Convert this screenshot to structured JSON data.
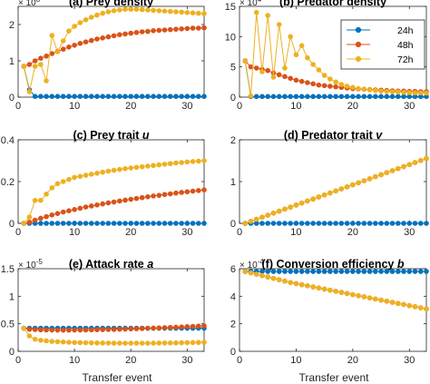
{
  "figure": {
    "xlabel": "Transfer event",
    "colors": {
      "24h": "#0072BD",
      "48h": "#D95319",
      "72h": "#EDB120"
    },
    "legend": {
      "placement": "inside-top-right of panel (b)",
      "entries": [
        "24h",
        "48h",
        "72h"
      ]
    },
    "line_style": "line with filled circle markers",
    "grid": false
  },
  "chart_data": [
    {
      "panel": "a",
      "type": "line",
      "title": "(a) Prey density",
      "title_parts": [
        {
          "text": "(a) Prey density",
          "italic": false
        }
      ],
      "exponent_label": "× 10^8",
      "exponent_base": "× 10",
      "exponent_power": "8",
      "xlim": [
        0,
        33
      ],
      "ylim": [
        0,
        2.5
      ],
      "xticks": [
        0,
        10,
        20,
        30
      ],
      "yticks": [
        0,
        1,
        2
      ],
      "xtick_labels": [
        "0",
        "10",
        "20",
        "30"
      ],
      "ytick_labels": [
        "0",
        "1",
        "2"
      ],
      "x": [
        1,
        2,
        3,
        4,
        5,
        6,
        7,
        8,
        9,
        10,
        11,
        12,
        13,
        14,
        15,
        16,
        17,
        18,
        19,
        20,
        21,
        22,
        23,
        24,
        25,
        26,
        27,
        28,
        29,
        30,
        31,
        32,
        33
      ],
      "series": [
        {
          "name": "24h",
          "values": [
            0.85,
            0.2,
            0.02,
            0.02,
            0.02,
            0.02,
            0.02,
            0.02,
            0.02,
            0.02,
            0.02,
            0.02,
            0.02,
            0.02,
            0.02,
            0.02,
            0.02,
            0.02,
            0.02,
            0.02,
            0.02,
            0.02,
            0.02,
            0.02,
            0.02,
            0.02,
            0.02,
            0.02,
            0.02,
            0.02,
            0.02,
            0.02,
            0.02
          ]
        },
        {
          "name": "48h",
          "values": [
            0.85,
            0.9,
            1.0,
            1.07,
            1.13,
            1.2,
            1.26,
            1.32,
            1.38,
            1.43,
            1.48,
            1.52,
            1.56,
            1.6,
            1.63,
            1.66,
            1.69,
            1.72,
            1.74,
            1.76,
            1.78,
            1.8,
            1.81,
            1.83,
            1.84,
            1.85,
            1.86,
            1.87,
            1.88,
            1.89,
            1.9,
            1.9,
            1.91
          ]
        },
        {
          "name": "72h",
          "values": [
            0.85,
            0.15,
            0.85,
            0.9,
            0.45,
            1.7,
            1.25,
            1.55,
            1.82,
            1.95,
            2.05,
            2.13,
            2.2,
            2.26,
            2.31,
            2.35,
            2.38,
            2.4,
            2.42,
            2.42,
            2.42,
            2.41,
            2.4,
            2.39,
            2.38,
            2.37,
            2.36,
            2.35,
            2.34,
            2.33,
            2.32,
            2.31,
            2.3
          ]
        }
      ]
    },
    {
      "panel": "b",
      "type": "line",
      "title": "(b) Predator density",
      "title_parts": [
        {
          "text": "(b) Predator density",
          "italic": false
        }
      ],
      "exponent_label": "× 10^4",
      "exponent_base": "× 10",
      "exponent_power": "4",
      "xlim": [
        0,
        33
      ],
      "ylim": [
        0,
        15
      ],
      "xticks": [
        0,
        10,
        20,
        30
      ],
      "yticks": [
        0,
        5,
        10,
        15
      ],
      "xtick_labels": [
        "0",
        "10",
        "20",
        "30"
      ],
      "ytick_labels": [
        "0",
        "5",
        "10",
        "15"
      ],
      "x": [
        1,
        2,
        3,
        4,
        5,
        6,
        7,
        8,
        9,
        10,
        11,
        12,
        13,
        14,
        15,
        16,
        17,
        18,
        19,
        20,
        21,
        22,
        23,
        24,
        25,
        26,
        27,
        28,
        29,
        30,
        31,
        32,
        33
      ],
      "series": [
        {
          "name": "24h",
          "values": [
            6,
            0.1,
            0.1,
            0.1,
            0.1,
            0.1,
            0.1,
            0.1,
            0.1,
            0.1,
            0.1,
            0.1,
            0.1,
            0.1,
            0.1,
            0.1,
            0.1,
            0.1,
            0.1,
            0.1,
            0.1,
            0.1,
            0.1,
            0.1,
            0.1,
            0.1,
            0.1,
            0.1,
            0.1,
            0.1,
            0.1,
            0.1,
            0.1
          ]
        },
        {
          "name": "48h",
          "values": [
            6,
            5,
            4.8,
            4.6,
            4.4,
            4.0,
            3.7,
            3.4,
            3.1,
            2.8,
            2.6,
            2.4,
            2.2,
            2.0,
            1.9,
            1.8,
            1.7,
            1.6,
            1.5,
            1.4,
            1.35,
            1.3,
            1.25,
            1.2,
            1.15,
            1.1,
            1.05,
            1.0,
            1.0,
            0.95,
            0.95,
            0.9,
            0.9
          ]
        },
        {
          "name": "72h",
          "values": [
            6,
            0.2,
            14,
            4.2,
            13.5,
            3.3,
            12,
            4.8,
            10,
            7,
            8.5,
            6.5,
            5.4,
            4.5,
            3.6,
            3.0,
            2.5,
            2.1,
            1.8,
            1.6,
            1.4,
            1.3,
            1.2,
            1.1,
            1.0,
            0.95,
            0.9,
            0.85,
            0.8,
            0.75,
            0.72,
            0.7,
            0.68
          ]
        }
      ]
    },
    {
      "panel": "c",
      "type": "line",
      "title": "(c) Prey trait u",
      "title_parts": [
        {
          "text": "(c)  Prey trait ",
          "italic": false
        },
        {
          "text": "u",
          "italic": true
        }
      ],
      "exponent_label": "",
      "exponent_base": "",
      "exponent_power": "",
      "xlim": [
        0,
        33
      ],
      "ylim": [
        0,
        0.4
      ],
      "xticks": [
        0,
        10,
        20,
        30
      ],
      "yticks": [
        0,
        0.2,
        0.4
      ],
      "xtick_labels": [
        "0",
        "10",
        "20",
        "30"
      ],
      "ytick_labels": [
        "0",
        "0.2",
        "0.4"
      ],
      "x": [
        1,
        2,
        3,
        4,
        5,
        6,
        7,
        8,
        9,
        10,
        11,
        12,
        13,
        14,
        15,
        16,
        17,
        18,
        19,
        20,
        21,
        22,
        23,
        24,
        25,
        26,
        27,
        28,
        29,
        30,
        31,
        32,
        33
      ],
      "series": [
        {
          "name": "24h",
          "values": [
            0,
            0,
            0,
            0,
            0,
            0,
            0,
            0,
            0,
            0,
            0,
            0,
            0,
            0,
            0,
            0,
            0,
            0,
            0,
            0,
            0,
            0,
            0,
            0,
            0,
            0,
            0,
            0,
            0,
            0,
            0,
            0,
            0
          ]
        },
        {
          "name": "48h",
          "values": [
            0,
            0.005,
            0.015,
            0.024,
            0.032,
            0.04,
            0.047,
            0.054,
            0.06,
            0.066,
            0.072,
            0.078,
            0.083,
            0.088,
            0.093,
            0.098,
            0.102,
            0.107,
            0.111,
            0.115,
            0.119,
            0.123,
            0.127,
            0.131,
            0.134,
            0.138,
            0.141,
            0.145,
            0.148,
            0.151,
            0.154,
            0.157,
            0.16
          ]
        },
        {
          "name": "72h",
          "values": [
            0,
            0.03,
            0.11,
            0.11,
            0.14,
            0.17,
            0.19,
            0.2,
            0.21,
            0.22,
            0.225,
            0.23,
            0.235,
            0.24,
            0.245,
            0.25,
            0.254,
            0.258,
            0.262,
            0.265,
            0.268,
            0.271,
            0.274,
            0.277,
            0.28,
            0.283,
            0.286,
            0.289,
            0.291,
            0.294,
            0.296,
            0.298,
            0.3
          ]
        }
      ]
    },
    {
      "panel": "d",
      "type": "line",
      "title": "(d) Predator trait v",
      "title_parts": [
        {
          "text": "(d)  Predator trait ",
          "italic": false
        },
        {
          "text": "v",
          "italic": true
        }
      ],
      "exponent_label": "",
      "exponent_base": "",
      "exponent_power": "",
      "xlim": [
        0,
        33
      ],
      "ylim": [
        0,
        2
      ],
      "xticks": [
        0,
        10,
        20,
        30
      ],
      "yticks": [
        0,
        1,
        2
      ],
      "xtick_labels": [
        "0",
        "10",
        "20",
        "30"
      ],
      "ytick_labels": [
        "0",
        "1",
        "2"
      ],
      "x": [
        1,
        2,
        3,
        4,
        5,
        6,
        7,
        8,
        9,
        10,
        11,
        12,
        13,
        14,
        15,
        16,
        17,
        18,
        19,
        20,
        21,
        22,
        23,
        24,
        25,
        26,
        27,
        28,
        29,
        30,
        31,
        32,
        33
      ],
      "series": [
        {
          "name": "24h",
          "values": [
            0,
            0,
            0,
            0,
            0,
            0,
            0,
            0,
            0,
            0,
            0,
            0,
            0,
            0,
            0,
            0,
            0,
            0,
            0,
            0,
            0,
            0,
            0,
            0,
            0,
            0,
            0,
            0,
            0,
            0,
            0,
            0,
            0
          ]
        },
        {
          "name": "48h",
          "values": [
            0,
            0.049,
            0.097,
            0.146,
            0.194,
            0.243,
            0.291,
            0.34,
            0.388,
            0.437,
            0.485,
            0.534,
            0.582,
            0.631,
            0.679,
            0.728,
            0.776,
            0.825,
            0.873,
            0.922,
            0.97,
            1.019,
            1.067,
            1.116,
            1.164,
            1.213,
            1.261,
            1.31,
            1.358,
            1.407,
            1.455,
            1.504,
            1.552
          ]
        },
        {
          "name": "72h",
          "values": [
            0,
            0.049,
            0.097,
            0.146,
            0.194,
            0.243,
            0.291,
            0.34,
            0.388,
            0.437,
            0.485,
            0.534,
            0.582,
            0.631,
            0.679,
            0.728,
            0.776,
            0.825,
            0.873,
            0.922,
            0.97,
            1.019,
            1.067,
            1.116,
            1.164,
            1.213,
            1.261,
            1.31,
            1.358,
            1.407,
            1.455,
            1.504,
            1.552
          ]
        }
      ]
    },
    {
      "panel": "e",
      "type": "line",
      "title": "(e) Attack rate a",
      "title_parts": [
        {
          "text": "(e)  Attack rate ",
          "italic": false
        },
        {
          "text": "a",
          "italic": true
        }
      ],
      "exponent_label": "× 10^-5",
      "exponent_base": "× 10",
      "exponent_power": "-5",
      "xlim": [
        0,
        33
      ],
      "ylim": [
        0,
        1.5
      ],
      "xticks": [
        0,
        10,
        20,
        30
      ],
      "yticks": [
        0,
        0.5,
        1,
        1.5
      ],
      "xtick_labels": [
        "0",
        "10",
        "20",
        "30"
      ],
      "ytick_labels": [
        "0",
        "0.5",
        "1",
        "1.5"
      ],
      "x": [
        1,
        2,
        3,
        4,
        5,
        6,
        7,
        8,
        9,
        10,
        11,
        12,
        13,
        14,
        15,
        16,
        17,
        18,
        19,
        20,
        21,
        22,
        23,
        24,
        25,
        26,
        27,
        28,
        29,
        30,
        31,
        32,
        33
      ],
      "series": [
        {
          "name": "24h",
          "values": [
            0.42,
            0.42,
            0.42,
            0.42,
            0.42,
            0.42,
            0.42,
            0.42,
            0.42,
            0.42,
            0.42,
            0.42,
            0.42,
            0.42,
            0.42,
            0.42,
            0.42,
            0.42,
            0.42,
            0.42,
            0.42,
            0.42,
            0.42,
            0.42,
            0.42,
            0.42,
            0.42,
            0.42,
            0.42,
            0.42,
            0.42,
            0.42,
            0.42
          ]
        },
        {
          "name": "48h",
          "values": [
            0.42,
            0.4,
            0.395,
            0.39,
            0.388,
            0.386,
            0.385,
            0.385,
            0.385,
            0.386,
            0.387,
            0.388,
            0.39,
            0.392,
            0.394,
            0.396,
            0.398,
            0.401,
            0.404,
            0.407,
            0.41,
            0.413,
            0.417,
            0.421,
            0.425,
            0.429,
            0.433,
            0.438,
            0.443,
            0.448,
            0.453,
            0.458,
            0.463
          ]
        },
        {
          "name": "72h",
          "values": [
            0.42,
            0.28,
            0.22,
            0.2,
            0.19,
            0.18,
            0.175,
            0.17,
            0.165,
            0.16,
            0.158,
            0.156,
            0.154,
            0.152,
            0.151,
            0.15,
            0.149,
            0.148,
            0.148,
            0.148,
            0.148,
            0.148,
            0.148,
            0.149,
            0.15,
            0.151,
            0.152,
            0.153,
            0.155,
            0.157,
            0.159,
            0.161,
            0.163
          ]
        }
      ]
    },
    {
      "panel": "f",
      "type": "line",
      "title": "(f) Conversion efficiency b",
      "title_parts": [
        {
          "text": "(f)  Conversion efficiency ",
          "italic": false
        },
        {
          "text": "b",
          "italic": true
        }
      ],
      "exponent_label": "× 10^-4",
      "exponent_base": "× 10",
      "exponent_power": "-4",
      "xlim": [
        0,
        33
      ],
      "ylim": [
        0,
        6
      ],
      "xticks": [
        0,
        10,
        20,
        30
      ],
      "yticks": [
        0,
        2,
        4,
        6
      ],
      "xtick_labels": [
        "0",
        "10",
        "20",
        "30"
      ],
      "ytick_labels": [
        "0",
        "2",
        "4",
        "6"
      ],
      "x": [
        1,
        2,
        3,
        4,
        5,
        6,
        7,
        8,
        9,
        10,
        11,
        12,
        13,
        14,
        15,
        16,
        17,
        18,
        19,
        20,
        21,
        22,
        23,
        24,
        25,
        26,
        27,
        28,
        29,
        30,
        31,
        32,
        33
      ],
      "series": [
        {
          "name": "24h",
          "values": [
            5.8,
            5.8,
            5.8,
            5.8,
            5.8,
            5.8,
            5.8,
            5.8,
            5.8,
            5.8,
            5.8,
            5.8,
            5.8,
            5.8,
            5.8,
            5.8,
            5.8,
            5.8,
            5.8,
            5.8,
            5.8,
            5.8,
            5.8,
            5.8,
            5.8,
            5.8,
            5.8,
            5.8,
            5.8,
            5.8,
            5.8,
            5.8,
            5.8
          ]
        },
        {
          "name": "48h",
          "values": [
            5.8,
            5.7,
            5.6,
            5.5,
            5.4,
            5.3,
            5.2,
            5.1,
            5.0,
            4.92,
            4.84,
            4.76,
            4.68,
            4.6,
            4.52,
            4.44,
            4.36,
            4.28,
            4.2,
            4.12,
            4.04,
            3.96,
            3.88,
            3.8,
            3.72,
            3.64,
            3.56,
            3.48,
            3.4,
            3.32,
            3.24,
            3.16,
            3.08
          ]
        },
        {
          "name": "72h",
          "values": [
            5.8,
            5.7,
            5.6,
            5.5,
            5.4,
            5.3,
            5.2,
            5.1,
            5.0,
            4.92,
            4.84,
            4.76,
            4.68,
            4.6,
            4.52,
            4.44,
            4.36,
            4.28,
            4.2,
            4.12,
            4.04,
            3.96,
            3.88,
            3.8,
            3.72,
            3.64,
            3.56,
            3.48,
            3.4,
            3.32,
            3.24,
            3.16,
            3.08
          ]
        }
      ]
    }
  ]
}
